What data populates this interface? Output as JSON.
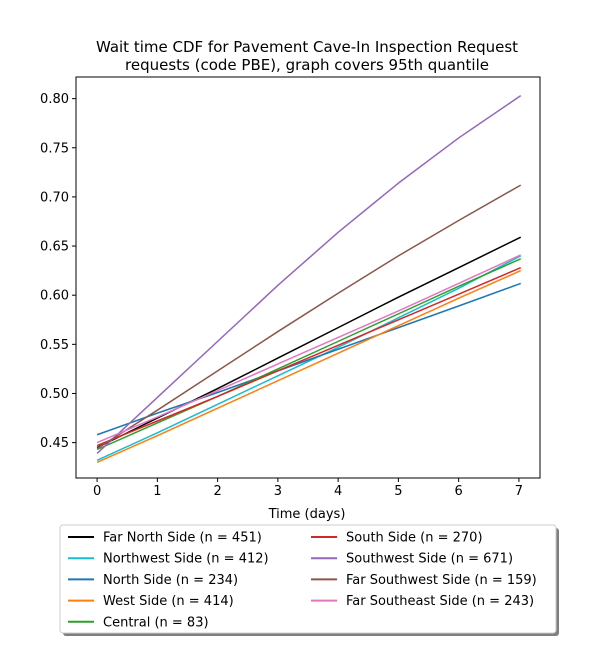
{
  "chart_data": {
    "type": "line",
    "title_line1": "Wait time CDF for Pavement Cave-In Inspection Request",
    "title_line2": "requests (code PBE), graph covers 95th quantile",
    "xlabel": "Time (days)",
    "ylabel": "",
    "xlim": [
      -0.35,
      7.35
    ],
    "ylim": [
      0.414,
      0.822
    ],
    "xticks": [
      0,
      1,
      2,
      3,
      4,
      5,
      6,
      7
    ],
    "yticks": [
      0.45,
      0.5,
      0.55,
      0.6,
      0.65,
      0.7,
      0.75,
      0.8
    ],
    "ytick_labels": [
      "0.45",
      "0.50",
      "0.55",
      "0.60",
      "0.65",
      "0.70",
      "0.75",
      "0.80"
    ],
    "grid": false,
    "legend_placement": "below",
    "x": [
      0,
      1,
      2,
      3,
      4,
      5,
      6,
      7.03
    ],
    "series": [
      {
        "name": "Far North Side (n = 451)",
        "color": "#000000",
        "values": [
          0.445,
          0.475,
          0.505,
          0.536,
          0.567,
          0.598,
          0.628,
          0.659
        ]
      },
      {
        "name": "Northwest Side (n = 412)",
        "color": "#17becf",
        "values": [
          0.432,
          0.46,
          0.489,
          0.518,
          0.547,
          0.577,
          0.607,
          0.64
        ]
      },
      {
        "name": "North Side (n = 234)",
        "color": "#1f77b4",
        "values": [
          0.458,
          0.48,
          0.501,
          0.523,
          0.545,
          0.567,
          0.589,
          0.612
        ]
      },
      {
        "name": "West Side (n = 414)",
        "color": "#ff7f0e",
        "values": [
          0.43,
          0.457,
          0.485,
          0.513,
          0.541,
          0.569,
          0.597,
          0.625
        ]
      },
      {
        "name": "Central (n = 83)",
        "color": "#2ca02c",
        "values": [
          0.443,
          0.47,
          0.497,
          0.525,
          0.553,
          0.581,
          0.609,
          0.637
        ]
      },
      {
        "name": "South Side (n = 270)",
        "color": "#d62728",
        "values": [
          0.447,
          0.472,
          0.497,
          0.523,
          0.549,
          0.575,
          0.601,
          0.628
        ]
      },
      {
        "name": "Southwest Side (n = 671)",
        "color": "#9467bd",
        "values": [
          0.439,
          0.496,
          0.553,
          0.61,
          0.664,
          0.714,
          0.76,
          0.803
        ]
      },
      {
        "name": "Far Southwest Side (n = 159)",
        "color": "#8c564b",
        "values": [
          0.444,
          0.483,
          0.523,
          0.563,
          0.602,
          0.64,
          0.676,
          0.712
        ]
      },
      {
        "name": "Far Southeast Side (n = 243)",
        "color": "#e377c2",
        "values": [
          0.45,
          0.476,
          0.503,
          0.53,
          0.557,
          0.584,
          0.612,
          0.641
        ]
      }
    ]
  }
}
